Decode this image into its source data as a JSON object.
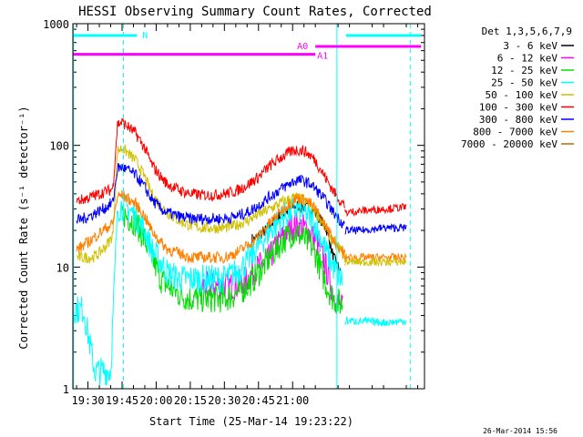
{
  "chart_data": {
    "type": "line",
    "title": "HESSI Observing Summary Count Rates, Corrected",
    "ylabel": "Corrected Count Rate (s⁻¹ detector⁻¹)",
    "xlabel": "Start Time (25-Mar-14 19:23:22)",
    "timestamp": "26-Mar-2014 15:56",
    "x_unit": "minutes of day",
    "xlim": [
      1163.37,
      1318.0
    ],
    "ylim": [
      1,
      1000
    ],
    "y_scale": "log",
    "x_ticks": [
      "19:30",
      "19:45",
      "20:00",
      "20:15",
      "20:30",
      "20:45",
      "21:00"
    ],
    "y_ticks": [
      "1",
      "10",
      "100",
      "1000"
    ],
    "legend": {
      "title": "Det 1,3,5,6,7,9",
      "position": "right",
      "entries": [
        {
          "label": "3 - 6 keV",
          "color": "#000000"
        },
        {
          "label": "6 - 12 keV",
          "color": "#ff00ff"
        },
        {
          "label": "12 - 25 keV",
          "color": "#00e000"
        },
        {
          "label": "25 - 50 keV",
          "color": "#00ffff"
        },
        {
          "label": "50 - 100 keV",
          "color": "#d0c000"
        },
        {
          "label": "100 - 300 keV",
          "color": "#ff0000"
        },
        {
          "label": "300 - 800 keV",
          "color": "#0000ff"
        },
        {
          "label": "800 - 7000 keV",
          "color": "#ff8000"
        },
        {
          "label": "7000 - 20000 keV",
          "color": "#b07000"
        }
      ]
    },
    "flag_bars": [
      {
        "label": "N",
        "color": "#00ffff",
        "level": 800,
        "segments": [
          [
            1163.4,
            1191.5
          ],
          [
            1283.5,
            1316.5
          ]
        ]
      },
      {
        "label": "A0",
        "color": "#ff00ff",
        "level": 650,
        "segments": [
          [
            1270.0,
            1316.5
          ]
        ]
      },
      {
        "label": "A1",
        "color": "#ff00ff",
        "level": 560,
        "segments": [
          [
            1163.4,
            1270.0
          ]
        ]
      }
    ],
    "markers": [
      {
        "style": "dashed",
        "color": "#00ffff",
        "x": 1185.6
      },
      {
        "style": "solid",
        "color": "#00ffff",
        "x": 1163.6
      },
      {
        "style": "solid",
        "color": "#00ffff",
        "x": 1279.5
      },
      {
        "style": "dashed",
        "color": "#00ffff",
        "x": 1311.7
      }
    ],
    "series": [
      {
        "name": "3 - 6 keV",
        "color": "#000000",
        "x": [
          1242,
          1243,
          1245,
          1248,
          1250,
          1252,
          1255,
          1258,
          1260,
          1262,
          1265,
          1268,
          1270,
          1272,
          1274,
          1275,
          1276,
          1277,
          1278,
          1279,
          1280,
          1281
        ],
        "y": [
          17,
          17,
          18,
          20,
          22,
          24,
          27,
          29,
          31,
          32,
          31,
          30,
          28,
          25,
          22,
          20,
          17,
          14,
          12,
          11,
          10,
          9
        ]
      },
      {
        "name": "6 - 12 keV",
        "color": "#ff00ff",
        "x": [
          1220,
          1225,
          1230,
          1235,
          1240,
          1245,
          1248,
          1250,
          1253,
          1256,
          1258,
          1260,
          1262,
          1265,
          1268,
          1270,
          1272,
          1274,
          1276,
          1278,
          1280,
          1282
        ],
        "y": [
          7,
          7,
          7,
          7,
          8,
          10,
          11,
          12,
          15,
          18,
          20,
          22,
          22,
          21,
          19,
          17,
          14,
          11,
          8,
          6,
          5,
          4.5
        ]
      },
      {
        "name": "12 - 25 keV",
        "color": "#00e000",
        "x": [
          1185,
          1187,
          1190,
          1193,
          1196,
          1199,
          1202,
          1205,
          1210,
          1215,
          1220,
          1225,
          1230,
          1235,
          1240,
          1245,
          1250,
          1255,
          1258,
          1260,
          1262,
          1265,
          1268,
          1270,
          1272,
          1275,
          1278,
          1281,
          1282
        ],
        "y": [
          28,
          26,
          24,
          20,
          15,
          11,
          8,
          7,
          6,
          5.5,
          5.5,
          5.5,
          5.5,
          6,
          7,
          9,
          12,
          16,
          18,
          19,
          19,
          17,
          15,
          13,
          10,
          7,
          5.5,
          5,
          5
        ]
      },
      {
        "name": "25 - 50 keV",
        "color": "#00ffff",
        "x": [
          1163.5,
          1168,
          1173,
          1178,
          1180,
          1183,
          1185,
          1188,
          1191,
          1195,
          1198,
          1202,
          1205,
          1210,
          1215,
          1220,
          1225,
          1230,
          1235,
          1240,
          1245,
          1250,
          1255,
          1260,
          1262,
          1265,
          1268,
          1270,
          1272,
          1275,
          1278,
          1281,
          1282
        ],
        "y": [
          4.5,
          4.5,
          1.4,
          1.4,
          1.4,
          30,
          32,
          30,
          26,
          20,
          14,
          11,
          9,
          8,
          8,
          8,
          8,
          8,
          9,
          11,
          15,
          20,
          25,
          29,
          30,
          28,
          25,
          22,
          18,
          13,
          10,
          8,
          8
        ]
      },
      {
        "name": "50 - 100 keV",
        "color": "#d0c000",
        "x": [
          1165,
          1168,
          1172,
          1175,
          1178,
          1180,
          1181,
          1183,
          1185,
          1188,
          1191,
          1195,
          1198,
          1202,
          1205,
          1210,
          1215,
          1220,
          1225,
          1230,
          1235,
          1240,
          1245,
          1250,
          1255,
          1260,
          1262,
          1265,
          1268,
          1270,
          1272,
          1275,
          1278,
          1281,
          1283
        ],
        "y": [
          12,
          12,
          12,
          13,
          15,
          17,
          19,
          90,
          95,
          85,
          75,
          55,
          40,
          32,
          28,
          24,
          22,
          21,
          21,
          21,
          22,
          24,
          27,
          30,
          34,
          37,
          37,
          35,
          32,
          29,
          25,
          20,
          16,
          14,
          12
        ]
      },
      {
        "name": "100 - 300 keV",
        "color": "#ff0000",
        "x": [
          1165,
          1168,
          1172,
          1175,
          1178,
          1180,
          1181,
          1183,
          1185,
          1188,
          1191,
          1195,
          1198,
          1202,
          1205,
          1210,
          1215,
          1220,
          1225,
          1230,
          1235,
          1240,
          1245,
          1250,
          1255,
          1260,
          1262,
          1265,
          1268,
          1270,
          1272,
          1275,
          1278,
          1281,
          1283
        ],
        "y": [
          35,
          36,
          38,
          40,
          42,
          43,
          45,
          150,
          155,
          140,
          125,
          95,
          70,
          55,
          48,
          43,
          40,
          39,
          39,
          40,
          42,
          47,
          55,
          68,
          80,
          90,
          92,
          90,
          82,
          75,
          65,
          52,
          42,
          35,
          32
        ]
      },
      {
        "name": "300 - 800 keV",
        "color": "#0000ff",
        "x": [
          1165,
          1168,
          1172,
          1175,
          1178,
          1180,
          1181,
          1183,
          1185,
          1188,
          1191,
          1195,
          1198,
          1202,
          1205,
          1210,
          1215,
          1220,
          1225,
          1230,
          1235,
          1240,
          1245,
          1250,
          1255,
          1260,
          1262,
          1265,
          1268,
          1270,
          1272,
          1275,
          1278,
          1281,
          1283
        ],
        "y": [
          24,
          25,
          27,
          29,
          31,
          33,
          34,
          65,
          66,
          62,
          57,
          45,
          36,
          30,
          28,
          26,
          25,
          25,
          25,
          25,
          26,
          28,
          32,
          38,
          44,
          50,
          52,
          51,
          48,
          44,
          40,
          34,
          28,
          24,
          22
        ]
      },
      {
        "name": "800 - 7000 keV",
        "color": "#ff8000",
        "x": [
          1165,
          1168,
          1172,
          1175,
          1178,
          1180,
          1181,
          1183,
          1185,
          1188,
          1191,
          1195,
          1198,
          1202,
          1205,
          1210,
          1215,
          1220,
          1225,
          1230,
          1235,
          1240,
          1245,
          1250,
          1255,
          1260,
          1262,
          1265,
          1268,
          1270,
          1272,
          1275,
          1278,
          1281,
          1283
        ],
        "y": [
          14,
          15,
          17,
          19,
          21,
          22,
          23,
          38,
          39,
          36,
          33,
          26,
          20,
          16,
          14,
          13,
          12,
          12,
          12,
          12,
          13,
          15,
          18,
          23,
          29,
          35,
          37,
          36,
          33,
          30,
          26,
          21,
          17,
          14,
          13
        ]
      }
    ],
    "late_segments": [
      {
        "color": "#ff0000",
        "x": [
          1283,
          1290,
          1300,
          1310
        ],
        "y": [
          28,
          29,
          30,
          31
        ]
      },
      {
        "color": "#0000ff",
        "x": [
          1283,
          1290,
          1300,
          1310
        ],
        "y": [
          20,
          20,
          21,
          21
        ]
      },
      {
        "color": "#ff8000",
        "x": [
          1283,
          1290,
          1300,
          1310
        ],
        "y": [
          12,
          12,
          12,
          12
        ]
      },
      {
        "color": "#d0c000",
        "x": [
          1283,
          1290,
          1300,
          1310
        ],
        "y": [
          11,
          11,
          11,
          11
        ]
      },
      {
        "color": "#00ffff",
        "x": [
          1283,
          1290,
          1300,
          1310
        ],
        "y": [
          3.6,
          3.6,
          3.5,
          3.6
        ]
      }
    ]
  }
}
